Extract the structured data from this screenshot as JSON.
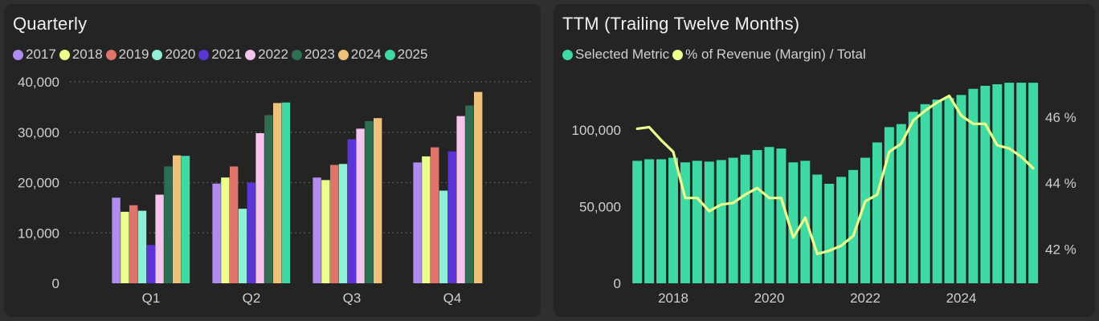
{
  "chart_data": [
    {
      "type": "bar",
      "title": "Quarterly",
      "categories": [
        "Q1",
        "Q2",
        "Q3",
        "Q4"
      ],
      "ylim": [
        0,
        40000
      ],
      "yticks": [
        0,
        10000,
        20000,
        30000,
        40000
      ],
      "ytick_labels": [
        "0",
        "10,000",
        "20,000",
        "30,000",
        "40,000"
      ],
      "grid": true,
      "series": [
        {
          "name": "2017",
          "color": "#b08cf0",
          "values": [
            17000,
            19800,
            21000,
            24000
          ]
        },
        {
          "name": "2018",
          "color": "#ecff8c",
          "values": [
            14200,
            21000,
            20500,
            25200
          ]
        },
        {
          "name": "2019",
          "color": "#e0736a",
          "values": [
            15500,
            23200,
            23500,
            27000
          ]
        },
        {
          "name": "2020",
          "color": "#8ef0d6",
          "values": [
            14400,
            14800,
            23700,
            18400
          ]
        },
        {
          "name": "2021",
          "color": "#5b35d6",
          "values": [
            7600,
            20000,
            28600,
            26200
          ]
        },
        {
          "name": "2022",
          "color": "#f4c4ec",
          "values": [
            17600,
            29800,
            30700,
            33200
          ]
        },
        {
          "name": "2023",
          "color": "#2e6e52",
          "values": [
            23200,
            33400,
            32200,
            35300
          ]
        },
        {
          "name": "2024",
          "color": "#eec27a",
          "values": [
            25400,
            35800,
            32800,
            38000
          ]
        },
        {
          "name": "2025",
          "color": "#3fd9a4",
          "values": [
            25300,
            35900,
            null,
            null
          ]
        }
      ]
    },
    {
      "type": "bar+line",
      "title": "TTM (Trailing Twelve Months)",
      "legend": [
        {
          "name": "Selected Metric",
          "color": "#3fd9a4"
        },
        {
          "name": "% of Revenue (Margin) / Total",
          "color": "#ecff8c"
        }
      ],
      "x_range": [
        2017.1,
        2025.85
      ],
      "xticks": [
        2018,
        2020,
        2022,
        2024
      ],
      "xtick_labels": [
        "2018",
        "2020",
        "2022",
        "2024"
      ],
      "bar_width_years": 0.2,
      "ylim": [
        0,
        130000
      ],
      "yticks": [
        0,
        50000,
        100000
      ],
      "ytick_labels": [
        "0",
        "50,000",
        "100,000"
      ],
      "y2lim": [
        40.96,
        47.0
      ],
      "y2ticks": [
        42,
        44,
        46
      ],
      "y2tick_labels": [
        "42 %",
        "44 %",
        "46 %"
      ],
      "bars": {
        "name": "Selected Metric",
        "x": [
          2017.25,
          2017.5,
          2017.75,
          2018.0,
          2018.25,
          2018.5,
          2018.75,
          2019.0,
          2019.25,
          2019.5,
          2019.75,
          2020.0,
          2020.25,
          2020.5,
          2020.75,
          2021.0,
          2021.25,
          2021.5,
          2021.75,
          2022.0,
          2022.25,
          2022.5,
          2022.75,
          2023.0,
          2023.25,
          2023.5,
          2023.75,
          2024.0,
          2024.25,
          2024.5,
          2024.75,
          2025.0,
          2025.25,
          2025.5
        ],
        "values": [
          80000,
          81000,
          81000,
          82000,
          79000,
          80000,
          79500,
          80500,
          82000,
          84000,
          87000,
          89000,
          88000,
          79000,
          80000,
          71000,
          65000,
          69500,
          74000,
          82000,
          92000,
          102000,
          104000,
          112000,
          117000,
          120000,
          121000,
          123000,
          127000,
          129000,
          130000,
          131000,
          131000,
          131000
        ]
      },
      "line": {
        "name": "% of Revenue (Margin) / Total",
        "x": [
          2017.25,
          2017.5,
          2017.75,
          2018.0,
          2018.25,
          2018.5,
          2018.75,
          2019.0,
          2019.25,
          2019.5,
          2019.75,
          2020.0,
          2020.25,
          2020.5,
          2020.75,
          2021.0,
          2021.25,
          2021.5,
          2021.75,
          2022.0,
          2022.25,
          2022.5,
          2022.75,
          2023.0,
          2023.25,
          2023.5,
          2023.75,
          2024.0,
          2024.25,
          2024.5,
          2024.75,
          2025.0,
          2025.25,
          2025.5
        ],
        "values": [
          45.65,
          45.7,
          45.3,
          44.95,
          43.55,
          43.55,
          43.15,
          43.35,
          43.4,
          43.65,
          43.85,
          43.55,
          43.55,
          42.35,
          42.95,
          41.85,
          41.95,
          42.1,
          42.4,
          43.45,
          43.65,
          44.95,
          45.2,
          45.9,
          46.2,
          46.45,
          46.65,
          46.05,
          45.8,
          45.8,
          45.15,
          45.05,
          44.8,
          44.45
        ]
      }
    }
  ]
}
